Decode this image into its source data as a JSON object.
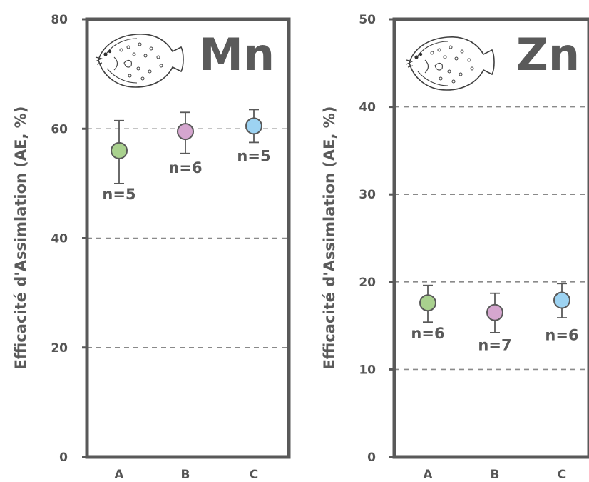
{
  "chart_data": [
    {
      "type": "scatter",
      "title": "Mn",
      "ylabel": "Efficacité d'Assimlation (AE, %)",
      "ylim": [
        0,
        80
      ],
      "yticks": [
        0,
        20,
        40,
        60,
        80
      ],
      "categories": [
        "A",
        "B",
        "C"
      ],
      "values": [
        56,
        59.5,
        60.5
      ],
      "error_low": [
        50,
        55.5,
        57.5
      ],
      "error_high": [
        61.5,
        63,
        63.5
      ],
      "n_labels": [
        "n=5",
        "n=6",
        "n=5"
      ],
      "colors": [
        "#a9d18e",
        "#d5a6cf",
        "#9dd3f2"
      ],
      "grid": "dashed",
      "icon": "flatfish-icon"
    },
    {
      "type": "scatter",
      "title": "Zn",
      "ylabel": "Efficacité d'Assimlation (AE, %)",
      "ylim": [
        0,
        50
      ],
      "yticks": [
        0,
        10,
        20,
        30,
        40,
        50
      ],
      "categories": [
        "A",
        "B",
        "C"
      ],
      "values": [
        17.6,
        16.5,
        17.9
      ],
      "error_low": [
        15.4,
        14.2,
        15.9
      ],
      "error_high": [
        19.6,
        18.7,
        19.8
      ],
      "n_labels": [
        "n=6",
        "n=7",
        "n=6"
      ],
      "colors": [
        "#a9d18e",
        "#d5a6cf",
        "#9dd3f2"
      ],
      "grid": "dashed",
      "icon": "flatfish-icon"
    }
  ]
}
